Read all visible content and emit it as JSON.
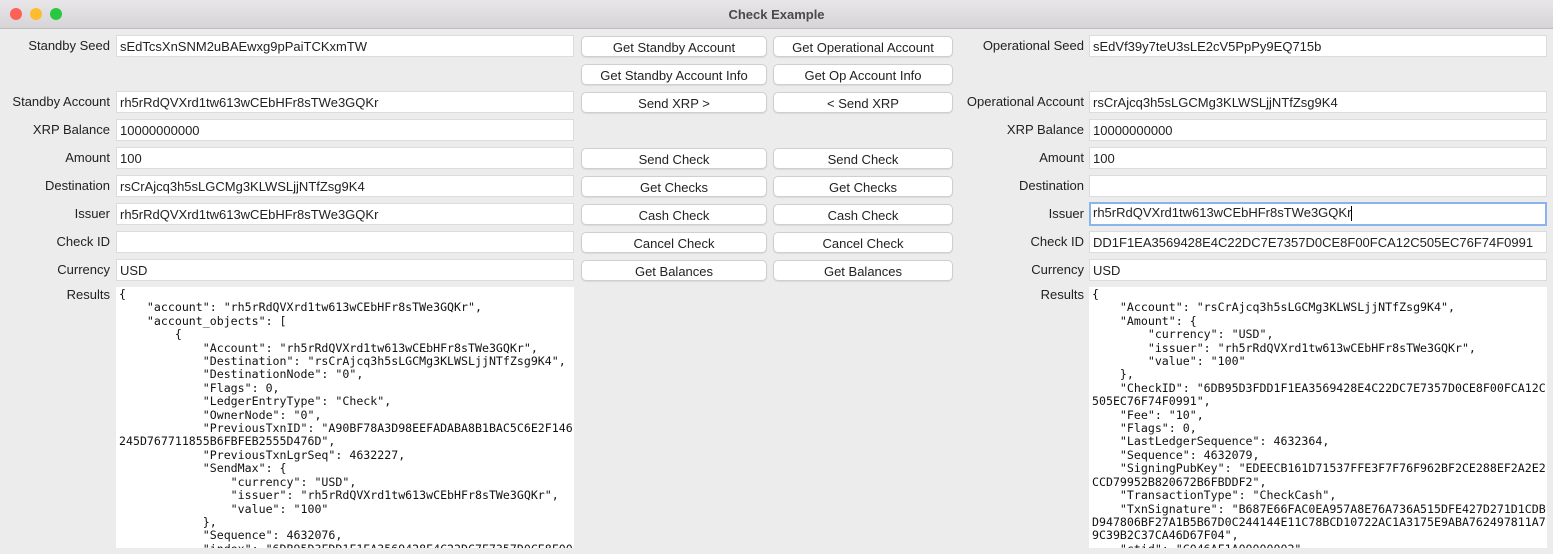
{
  "window": {
    "title": "Check Example",
    "colors": {
      "close": "#fe5f57",
      "minimize": "#febc2e",
      "zoom": "#28c840",
      "focus_ring": "#8ab4ea"
    }
  },
  "standby": {
    "seed_label": "Standby Seed",
    "seed": "sEdTcsXnSNM2uBAEwxg9pPaiTCKxmTW",
    "account_label": "Standby Account",
    "account": "rh5rRdQVXrd1tw613wCEbHFr8sTWe3GQKr",
    "balance_label": "XRP Balance",
    "balance": "10000000000",
    "amount_label": "Amount",
    "amount": "100",
    "destination_label": "Destination",
    "destination": "rsCrAjcq3h5sLGCMg3KLWSLjjNTfZsg9K4",
    "issuer_label": "Issuer",
    "issuer": "rh5rRdQVXrd1tw613wCEbHFr8sTWe3GQKr",
    "check_id_label": "Check ID",
    "check_id": "",
    "currency_label": "Currency",
    "currency": "USD",
    "results_label": "Results",
    "results": "{\n    \"account\": \"rh5rRdQVXrd1tw613wCEbHFr8sTWe3GQKr\",\n    \"account_objects\": [\n        {\n            \"Account\": \"rh5rRdQVXrd1tw613wCEbHFr8sTWe3GQKr\",\n            \"Destination\": \"rsCrAjcq3h5sLGCMg3KLWSLjjNTfZsg9K4\",\n            \"DestinationNode\": \"0\",\n            \"Flags\": 0,\n            \"LedgerEntryType\": \"Check\",\n            \"OwnerNode\": \"0\",\n            \"PreviousTxnID\": \"A90BF78A3D98EEFADABA8B1BAC5C6E2F146\n245D767711855B6FBFEB2555D476D\",\n            \"PreviousTxnLgrSeq\": 4632227,\n            \"SendMax\": {\n                \"currency\": \"USD\",\n                \"issuer\": \"rh5rRdQVXrd1tw613wCEbHFr8sTWe3GQKr\",\n                \"value\": \"100\"\n            },\n            \"Sequence\": 4632076,\n            \"index\": \"6DB95D3FDD1F1EA3569428E4C22DC7E7357D0CE8F00"
  },
  "operational": {
    "seed_label": "Operational Seed",
    "seed": "sEdVf39y7teU3sLE2cV5PpPy9EQ715b",
    "account_label": "Operational Account",
    "account": "rsCrAjcq3h5sLGCMg3KLWSLjjNTfZsg9K4",
    "balance_label": "XRP Balance",
    "balance": "10000000000",
    "amount_label": "Amount",
    "amount": "100",
    "destination_label": "Destination",
    "destination": "",
    "issuer_label": "Issuer",
    "issuer": "rh5rRdQVXrd1tw613wCEbHFr8sTWe3GQKr",
    "check_id_label": "Check ID",
    "check_id": "DD1F1EA3569428E4C22DC7E7357D0CE8F00FCA12C505EC76F74F0991",
    "currency_label": "Currency",
    "currency": "USD",
    "results_label": "Results",
    "results": "{\n    \"Account\": \"rsCrAjcq3h5sLGCMg3KLWSLjjNTfZsg9K4\",\n    \"Amount\": {\n        \"currency\": \"USD\",\n        \"issuer\": \"rh5rRdQVXrd1tw613wCEbHFr8sTWe3GQKr\",\n        \"value\": \"100\"\n    },\n    \"CheckID\": \"6DB95D3FDD1F1EA3569428E4C22DC7E7357D0CE8F00FCA12C\n505EC76F74F0991\",\n    \"Fee\": \"10\",\n    \"Flags\": 0,\n    \"LastLedgerSequence\": 4632364,\n    \"Sequence\": 4632079,\n    \"SigningPubKey\": \"EDEECB161D71537FFE3F7F76F962BF2CE288EF2A2E2\nCCD79952B820672B6FBDDF2\",\n    \"TransactionType\": \"CheckCash\",\n    \"TxnSignature\": \"B687E66FAC0EA957A8E76A736A515DFE427D271D1CDB\nD947806BF27A1B5B67D0C244144E11C78BCD10722AC1A3175E9ABA762497811A7\n9C39B2C37CA46D67F04\",\n    \"ctid\": \"C046AF1A00000002\","
  },
  "buttons": {
    "get_standby_account": "Get Standby Account",
    "get_operational_account": "Get Operational Account",
    "get_standby_info": "Get Standby Account Info",
    "get_op_info": "Get Op Account Info",
    "send_xrp_right": "Send XRP >",
    "send_xrp_left": "< Send XRP",
    "send_check_sb": "Send  Check",
    "send_check_op": "Send Check",
    "get_checks_sb": "Get Checks",
    "get_checks_op": "Get Checks",
    "cash_check_sb": "Cash  Check",
    "cash_check_op": "Cash Check",
    "cancel_check_sb": "Cancel  Check",
    "cancel_check_op": "Cancel Check",
    "get_balances_sb": "Get Balances",
    "get_balances_op": "Get Balances"
  }
}
